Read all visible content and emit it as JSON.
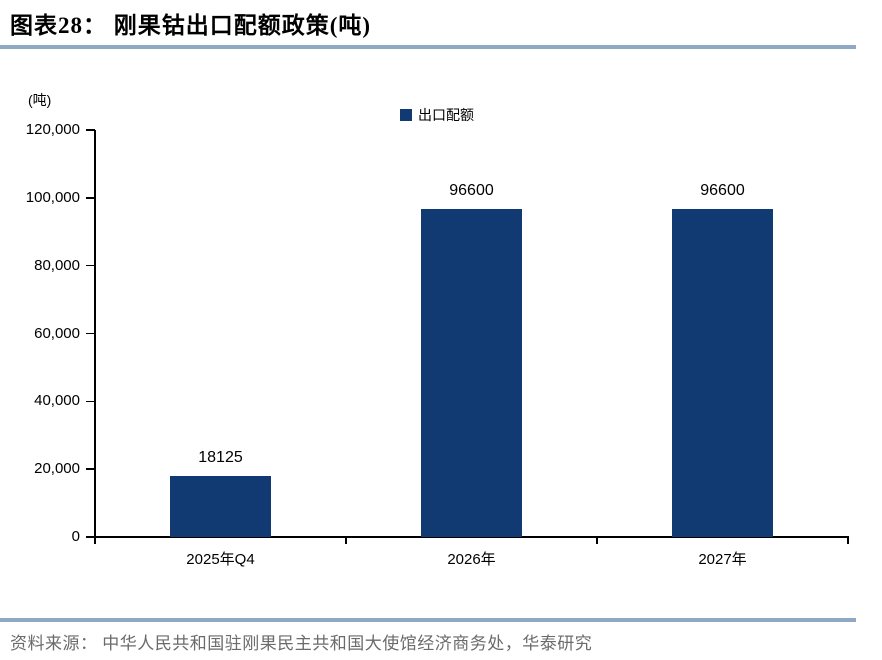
{
  "header": {
    "title": "图表28：  刚果钴出口配额政策(吨)"
  },
  "chart_data": {
    "type": "bar",
    "title": "刚果钴出口配额政策(吨)",
    "unit_label": "(吨)",
    "legend": [
      "出口配额"
    ],
    "legend_position": "top-center",
    "categories": [
      "2025年Q4",
      "2026年",
      "2027年"
    ],
    "values": [
      18125,
      96600,
      96600
    ],
    "value_labels": [
      "18125",
      "96600",
      "96600"
    ],
    "ylim": [
      0,
      120000
    ],
    "ytick_step": 20000,
    "ytick_labels": [
      "0",
      "20,000",
      "40,000",
      "60,000",
      "80,000",
      "100,000",
      "120,000"
    ],
    "grid": false,
    "xlabel": "",
    "ylabel": "(吨)"
  },
  "colors": {
    "bar": "#113A73",
    "divider": "#8FA9C3",
    "axis": "#000000",
    "source_text": "#6B6B6B"
  },
  "footer": {
    "source": "资料来源： 中华人民共和国驻刚果民主共和国大使馆经济商务处，华泰研究"
  }
}
